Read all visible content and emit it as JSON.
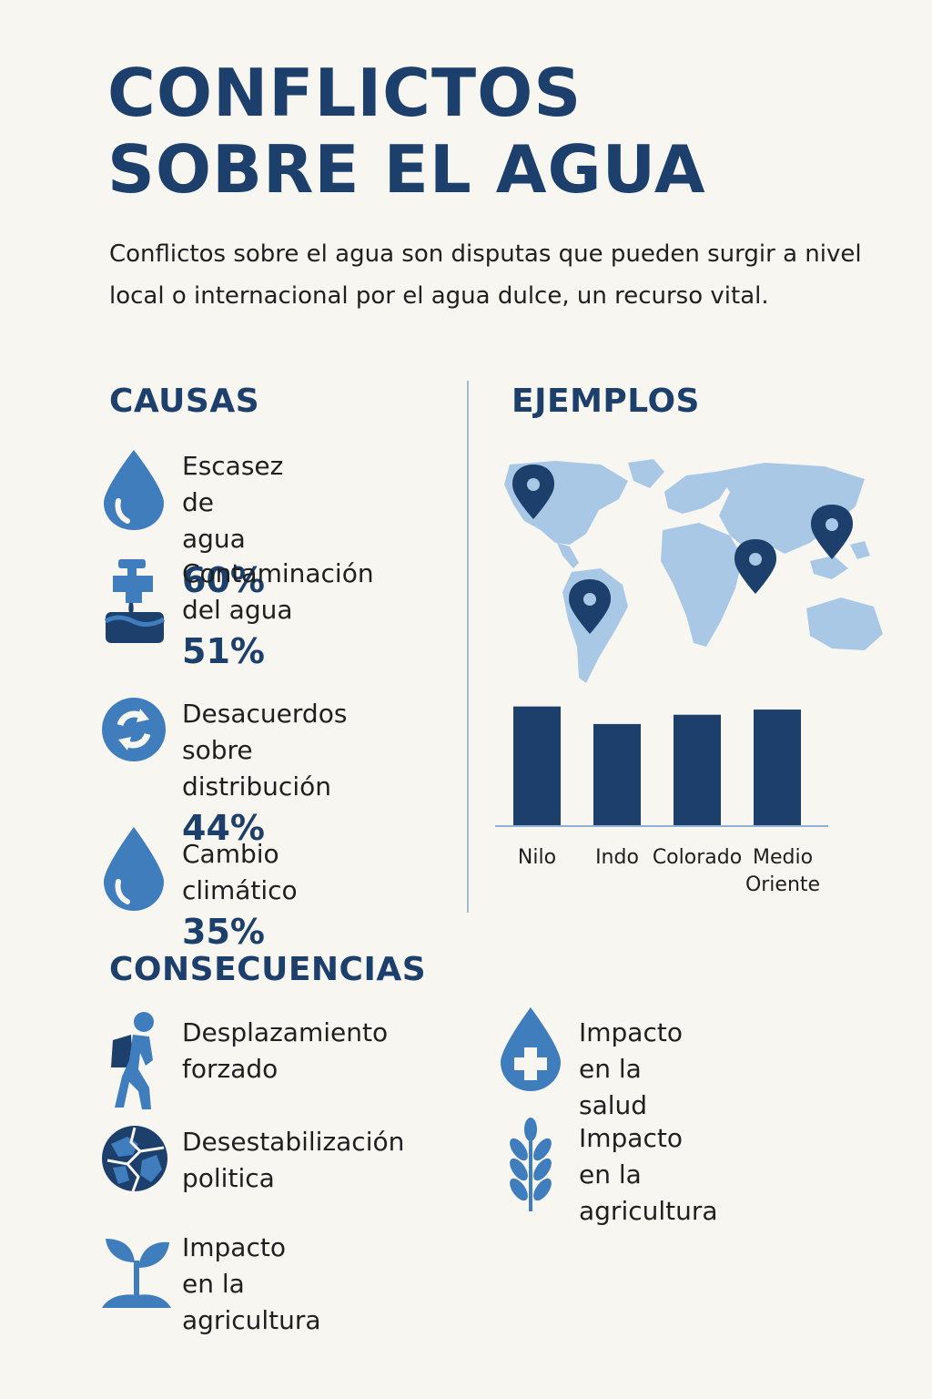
{
  "title": {
    "line1": "CONFLICTOS",
    "line2": "SOBRE EL AGUA"
  },
  "intro": "Conflictos sobre el agua son disputas que pueden surgir a nivel local o internacional por el agua dulce, un recurso vital.",
  "colors": {
    "navy": "#1c3f6b",
    "blue": "#3f7dbd",
    "light_blue": "#a9c8e6",
    "background": "#f8f6f1"
  },
  "causes": {
    "heading": "CAUSAS",
    "items": [
      {
        "line1": "Escasez de agua",
        "line2": "",
        "pct": "60%",
        "icon": "water-drop-icon"
      },
      {
        "line1": "Contaminación",
        "line2": "del agua",
        "pct": "51%",
        "icon": "faucet-pollution-icon"
      },
      {
        "line1": "Desacuerdos",
        "line2": "sobre distribución",
        "pct": "44%",
        "icon": "cycle-arrows-icon"
      },
      {
        "line1": "Cambio climático",
        "line2": "",
        "pct": "35%",
        "icon": "water-drop-icon"
      }
    ]
  },
  "examples": {
    "heading": "EJEMPLOS",
    "map_icon": "world-map-with-pins",
    "chart_data": {
      "type": "bar",
      "categories": [
        "Nilo",
        "Indo",
        "Colorado",
        "Medio Oriente"
      ],
      "category_lines": [
        [
          "Nilo"
        ],
        [
          "Indo"
        ],
        [
          "Colorado"
        ],
        [
          "Medio",
          "Oriente"
        ]
      ],
      "values": [
        115,
        98,
        107,
        112
      ],
      "ylim": [
        0,
        120
      ],
      "grid": false,
      "title": "",
      "xlabel": "",
      "ylabel": ""
    }
  },
  "consequences": {
    "heading": "CONSECUENCIAS",
    "items": [
      {
        "line1": "Desplazamiento",
        "line2": "forzado",
        "icon": "walking-person-icon"
      },
      {
        "line1": "Impacto en la salud",
        "line2": "",
        "icon": "drop-medical-cross-icon"
      },
      {
        "line1": "Desestabilización",
        "line2": "politica",
        "icon": "cracked-globe-icon"
      },
      {
        "line1": "Impacto en la",
        "line2": "agricultura",
        "icon": "wheat-icon"
      },
      {
        "line1": "Impacto en la",
        "line2": "agricultura",
        "icon": "sprout-icon"
      }
    ]
  }
}
